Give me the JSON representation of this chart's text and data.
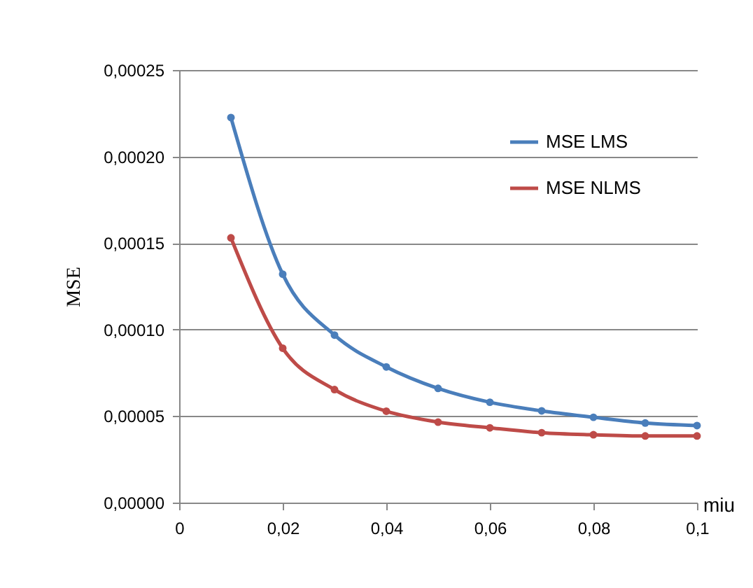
{
  "chart_data": {
    "type": "line",
    "xlabel": "miu",
    "ylabel": "MSE",
    "x": [
      0.01,
      0.02,
      0.03,
      0.04,
      0.05,
      0.06,
      0.07,
      0.08,
      0.09,
      0.1
    ],
    "series": [
      {
        "name": "MSE LMS",
        "color": "#4a7ebb",
        "values": [
          0.0002225,
          0.000132,
          9.68e-05,
          7.84e-05,
          6.6e-05,
          5.8e-05,
          5.3e-05,
          4.93e-05,
          4.6e-05,
          4.45e-05
        ]
      },
      {
        "name": "MSE NLMS",
        "color": "#be4b48",
        "values": [
          0.000153,
          8.92e-05,
          6.53e-05,
          5.28e-05,
          4.65e-05,
          4.32e-05,
          4.04e-05,
          3.92e-05,
          3.85e-05,
          3.85e-05
        ]
      }
    ],
    "xlim": [
      0,
      0.1
    ],
    "xticks": [
      0,
      {
        "value": 0.02,
        "label": "0,02"
      },
      {
        "value": 0.04,
        "label": "0,04"
      },
      {
        "value": 0.06,
        "label": "0,06"
      },
      {
        "value": 0.08,
        "label": "0,08"
      },
      {
        "value": 0.1,
        "label": "0,1"
      }
    ],
    "ylim": [
      0,
      0.00025
    ],
    "yticks": [
      {
        "value": 0,
        "label": "0,00000"
      },
      {
        "value": 5e-05,
        "label": "0,00005"
      },
      {
        "value": 0.0001,
        "label": "0,00010"
      },
      {
        "value": 0.00015,
        "label": "0,00015"
      },
      {
        "value": 0.0002,
        "label": "0,00020"
      },
      {
        "value": 0.00025,
        "label": "0,00025"
      }
    ],
    "grid": "y",
    "legend": "top right",
    "marker": "circle",
    "line_style": "solid"
  }
}
